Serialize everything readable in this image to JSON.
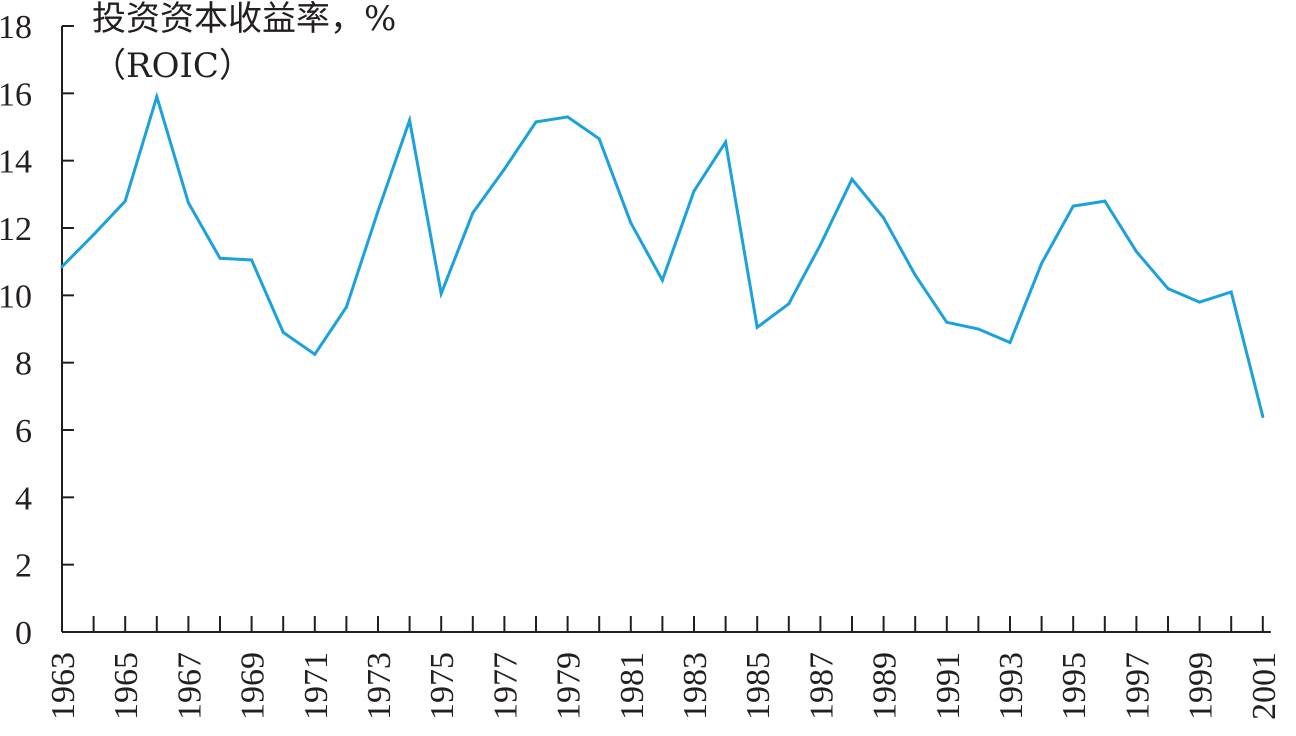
{
  "chart_data": {
    "type": "line",
    "ylabel": "投资资本收益率，%",
    "ylabel_sub": "（ROIC）",
    "xlabel": "",
    "ylim": [
      0,
      18
    ],
    "yticks": [
      0,
      2,
      4,
      6,
      8,
      10,
      12,
      14,
      16,
      18
    ],
    "x": [
      1963,
      1964,
      1965,
      1966,
      1967,
      1968,
      1969,
      1970,
      1971,
      1972,
      1973,
      1974,
      1975,
      1976,
      1977,
      1978,
      1979,
      1980,
      1981,
      1982,
      1983,
      1984,
      1985,
      1986,
      1987,
      1988,
      1989,
      1990,
      1991,
      1992,
      1993,
      1994,
      1995,
      1996,
      1997,
      1998,
      1999,
      2000,
      2001
    ],
    "xtick_labels": [
      "1963",
      "1965",
      "1967",
      "1969",
      "1971",
      "1973",
      "1975",
      "1977",
      "1979",
      "1981",
      "1983",
      "1985",
      "1987",
      "1989",
      "1991",
      "1993",
      "1995",
      "1997",
      "1999",
      "2001"
    ],
    "series": [
      {
        "color": "#1ba1dc",
        "values": [
          10.85,
          11.8,
          12.8,
          15.9,
          12.75,
          11.1,
          11.05,
          8.9,
          8.25,
          9.65,
          12.5,
          15.2,
          10.05,
          12.45,
          13.75,
          15.15,
          15.3,
          14.65,
          12.15,
          10.45,
          13.1,
          14.55,
          9.05,
          9.75,
          11.5,
          13.45,
          12.3,
          10.6,
          9.2,
          9.0,
          8.6,
          10.95,
          12.65,
          12.8,
          11.3,
          10.2,
          9.8,
          10.1,
          6.4
        ]
      }
    ],
    "grid": false,
    "legend": "none",
    "colors": {
      "axis": "#231f20",
      "line": "#1ba1dc",
      "text": "#231f20"
    }
  }
}
